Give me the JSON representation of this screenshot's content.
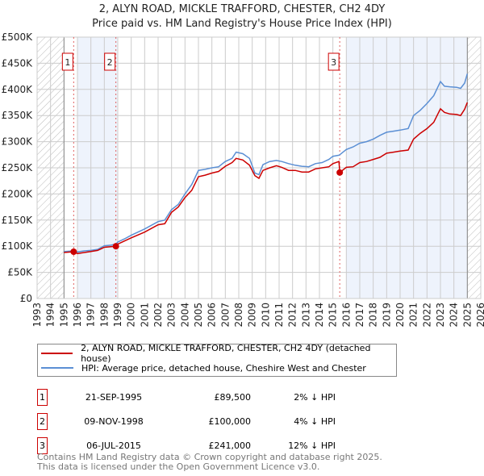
{
  "title_line1": "2, ALYN ROAD, MICKLE TRAFFORD, CHESTER, CH2 4DY",
  "title_line2": "Price paid vs. HM Land Registry's House Price Index (HPI)",
  "colors": {
    "property": "#cc0000",
    "hpi": "#5b8fd4",
    "shade": "#eef3fc",
    "grid": "#cccccc"
  },
  "chart_data": {
    "type": "line",
    "title": "Price paid vs. HM Land Registry's House Price Index (HPI)",
    "xlim": [
      1993,
      2026
    ],
    "ylim": [
      0,
      500000
    ],
    "x_ticks": [
      "1993",
      "1994",
      "1995",
      "1996",
      "1997",
      "1998",
      "1999",
      "2000",
      "2001",
      "2002",
      "2003",
      "2004",
      "2005",
      "2006",
      "2007",
      "2008",
      "2009",
      "2010",
      "2011",
      "2012",
      "2013",
      "2014",
      "2015",
      "2016",
      "2017",
      "2018",
      "2019",
      "2020",
      "2021",
      "2022",
      "2023",
      "2024",
      "2025",
      "2026"
    ],
    "y_ticks": [
      {
        "v": 0,
        "label": "£0"
      },
      {
        "v": 50000,
        "label": "£50K"
      },
      {
        "v": 100000,
        "label": "£100K"
      },
      {
        "v": 150000,
        "label": "£150K"
      },
      {
        "v": 200000,
        "label": "£200K"
      },
      {
        "v": 250000,
        "label": "£250K"
      },
      {
        "v": 300000,
        "label": "£300K"
      },
      {
        "v": 350000,
        "label": "£350K"
      },
      {
        "v": 400000,
        "label": "£400K"
      },
      {
        "v": 450000,
        "label": "£450K"
      },
      {
        "v": 500000,
        "label": "£500K"
      }
    ],
    "grid": true,
    "hatched_ranges": [
      [
        1993,
        1995
      ],
      [
        2025,
        2026
      ]
    ],
    "shaded_ranges": [
      [
        1996,
        1999
      ],
      [
        2016,
        2025
      ]
    ],
    "series": [
      {
        "name": "2, ALYN ROAD, MICKLE TRAFFORD, CHESTER, CH2 4DY (detached house)",
        "color": "#cc0000",
        "x": [
          1995,
          1995.72,
          1996,
          1996.5,
          1997,
          1997.5,
          1998,
          1998.5,
          1998.86,
          1999,
          1999.5,
          2000,
          2001,
          2002,
          2002.5,
          2003,
          2003.5,
          2004,
          2004.5,
          2005,
          2005.5,
          2006,
          2006.5,
          2007,
          2007.5,
          2007.8,
          2008.3,
          2008.8,
          2009.2,
          2009.5,
          2009.8,
          2010.3,
          2010.8,
          2011.2,
          2011.7,
          2012.2,
          2012.7,
          2013.2,
          2013.7,
          2014.2,
          2014.7,
          2015.0,
          2015.45,
          2015.51,
          2016,
          2016.5,
          2017,
          2017.5,
          2018,
          2018.5,
          2019,
          2019.5,
          2020,
          2020.6,
          2021,
          2021.5,
          2022,
          2022.5,
          2023,
          2023.3,
          2023.7,
          2024.2,
          2024.5,
          2024.8,
          2025
        ],
        "y": [
          88000,
          89500,
          86000,
          88000,
          90000,
          92000,
          98000,
          99000,
          100000,
          104000,
          110000,
          116000,
          127000,
          141000,
          143000,
          165000,
          175000,
          193000,
          207000,
          233000,
          236000,
          240000,
          243000,
          253000,
          260000,
          268000,
          265000,
          255000,
          235000,
          230000,
          245000,
          250000,
          254000,
          251000,
          245000,
          245000,
          242000,
          242000,
          248000,
          250000,
          252000,
          258000,
          262000,
          241000,
          251000,
          252000,
          260000,
          262000,
          266000,
          270000,
          278000,
          280000,
          282000,
          284000,
          305000,
          316000,
          325000,
          337000,
          363000,
          356000,
          353000,
          352000,
          350000,
          362000,
          375000
        ]
      },
      {
        "name": "HPI: Average price, detached house, Cheshire West and Chester",
        "color": "#5b8fd4",
        "x": [
          1995,
          1995.72,
          1996,
          1996.5,
          1997,
          1997.5,
          1998,
          1998.5,
          1998.86,
          1999,
          1999.5,
          2000,
          2001,
          2002,
          2002.5,
          2003,
          2003.5,
          2004,
          2004.5,
          2005,
          2005.5,
          2006,
          2006.5,
          2007,
          2007.5,
          2007.8,
          2008.3,
          2008.8,
          2009.2,
          2009.5,
          2009.8,
          2010.3,
          2010.8,
          2011.2,
          2011.7,
          2012.2,
          2012.7,
          2013.2,
          2013.7,
          2014.2,
          2014.7,
          2015.0,
          2015.45,
          2015.51,
          2016,
          2016.5,
          2017,
          2017.5,
          2018,
          2018.5,
          2019,
          2019.5,
          2020,
          2020.6,
          2021,
          2021.5,
          2022,
          2022.5,
          2023,
          2023.3,
          2023.7,
          2024.2,
          2024.5,
          2024.8,
          2025
        ],
        "y": [
          90000,
          91000,
          89000,
          91000,
          92000,
          94000,
          101000,
          102000,
          104000,
          108000,
          114000,
          121000,
          133000,
          147000,
          150000,
          170000,
          180000,
          200000,
          218000,
          245000,
          247000,
          250000,
          252000,
          262000,
          268000,
          280000,
          277000,
          268000,
          240000,
          237000,
          256000,
          262000,
          264000,
          262000,
          258000,
          255000,
          253000,
          252000,
          258000,
          260000,
          266000,
          272000,
          274000,
          275000,
          285000,
          290000,
          297000,
          300000,
          305000,
          312000,
          318000,
          320000,
          322000,
          325000,
          350000,
          360000,
          373000,
          388000,
          415000,
          406000,
          405000,
          404000,
          402000,
          412000,
          430000
        ]
      }
    ],
    "sales": [
      {
        "n": "1",
        "x": 1995.72,
        "y": 89500,
        "date": "21-SEP-1995",
        "price": "£89,500",
        "hpi": "2% ↓ HPI"
      },
      {
        "n": "2",
        "x": 1998.86,
        "y": 100000,
        "date": "09-NOV-1998",
        "price": "£100,000",
        "hpi": "4% ↓ HPI"
      },
      {
        "n": "3",
        "x": 2015.51,
        "y": 241000,
        "date": "06-JUL-2015",
        "price": "£241,000",
        "hpi": "12% ↓ HPI"
      }
    ]
  },
  "legend": {
    "property": "2, ALYN ROAD, MICKLE TRAFFORD, CHESTER, CH2 4DY (detached house)",
    "hpi": "HPI: Average price, detached house, Cheshire West and Chester"
  },
  "footer": {
    "line1": "Contains HM Land Registry data © Crown copyright and database right 2025.",
    "line2": "This data is licensed under the Open Government Licence v3.0."
  }
}
